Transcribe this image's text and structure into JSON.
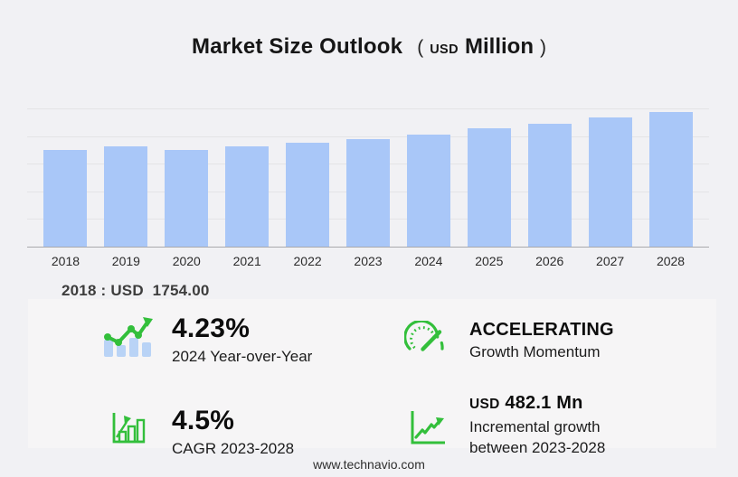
{
  "title": {
    "main": "Market Size Outlook",
    "paren_open": "(",
    "unit_small": "USD",
    "unit_large": "Million",
    "paren_close": ")"
  },
  "chart_data": {
    "type": "bar",
    "title": "Market Size Outlook (USD Million)",
    "categories": [
      "2018",
      "2019",
      "2020",
      "2021",
      "2022",
      "2023",
      "2024",
      "2025",
      "2026",
      "2027",
      "2028"
    ],
    "values": [
      1754,
      1826,
      1760,
      1824,
      1890,
      1958,
      2041,
      2141,
      2235,
      2342,
      2440
    ],
    "xlabel": "",
    "ylabel": "",
    "ylim": [
      0,
      2500
    ],
    "gridline_step": 500,
    "grid": true,
    "legend": false,
    "bar_color": "#a9c7f8"
  },
  "callout": {
    "text": "2018 : USD  1754.00"
  },
  "stats": [
    {
      "icon": "bars-trendline-icon",
      "value": "4.23%",
      "label": "2024 Year-over-Year"
    },
    {
      "icon": "speedometer-icon",
      "value": "ACCELERATING",
      "label": "Growth Momentum"
    },
    {
      "icon": "bar-growth-icon",
      "value": "4.5%",
      "label": "CAGR 2023-2028"
    },
    {
      "icon": "line-growth-icon",
      "value_prefix": "USD",
      "value": "482.1 Mn",
      "label": "Incremental growth",
      "label2": "between 2023-2028"
    }
  ],
  "footer": {
    "url": "www.technavio.com"
  },
  "colors": {
    "bg": "#f1f1f4",
    "panel_bg": "#f6f5f6",
    "bar_blue": "#a9c7f8",
    "icon_bar_blue": "#b9d3f6",
    "accent_green": "#33bf3b",
    "grid_line": "#e4e4e6",
    "axis_line": "#a9a9ad",
    "text_dark": "#161616"
  }
}
